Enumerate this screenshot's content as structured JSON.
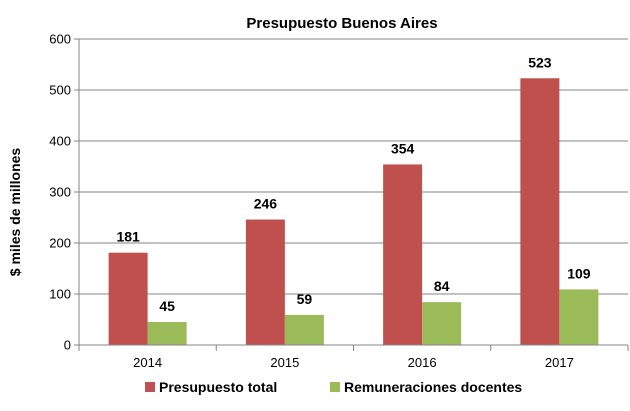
{
  "chart_data": {
    "type": "bar",
    "title": "Presupuesto Buenos Aires",
    "ylabel": "$ miles de millones",
    "xlabel": "",
    "categories": [
      "2014",
      "2015",
      "2016",
      "2017"
    ],
    "ylim": [
      0,
      600
    ],
    "yticks": [
      0,
      100,
      200,
      300,
      400,
      500,
      600
    ],
    "grid": true,
    "legend_position": "bottom",
    "series": [
      {
        "name": "Presupuesto total",
        "values": [
          181,
          246,
          354,
          523
        ],
        "color": "#C0504D"
      },
      {
        "name": "Remuneraciones docentes",
        "values": [
          45,
          59,
          84,
          109
        ],
        "color": "#9BBB59"
      }
    ]
  }
}
